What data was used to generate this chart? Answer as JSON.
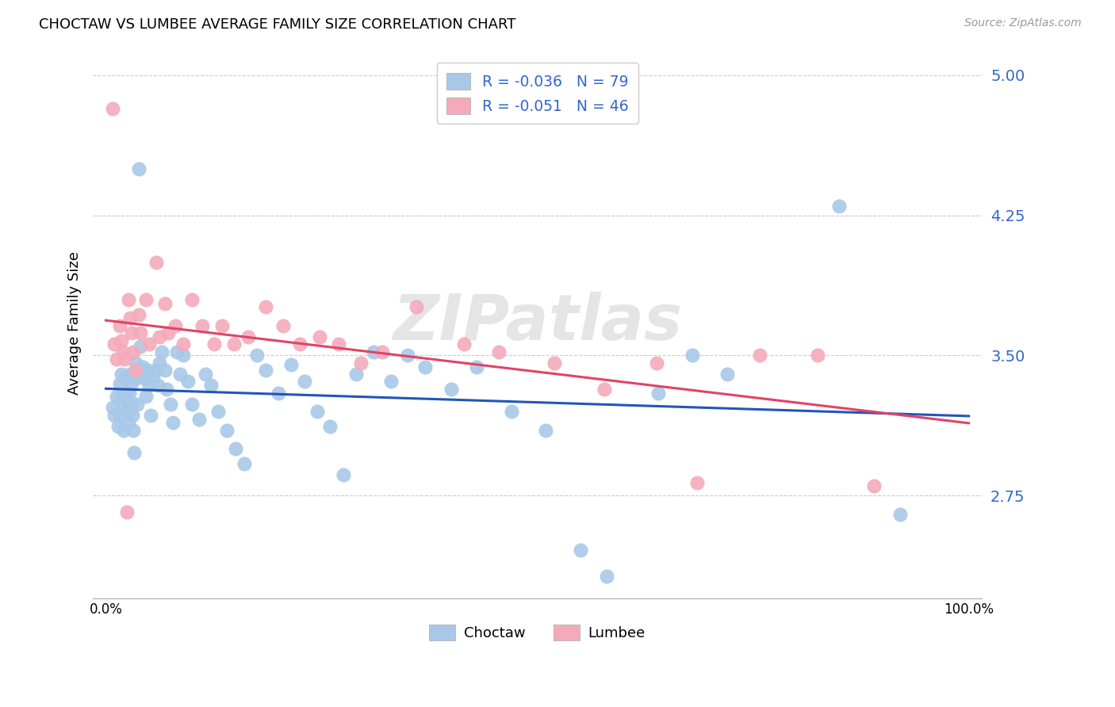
{
  "title": "CHOCTAW VS LUMBEE AVERAGE FAMILY SIZE CORRELATION CHART",
  "source": "Source: ZipAtlas.com",
  "ylabel": "Average Family Size",
  "ylim": [
    2.2,
    5.15
  ],
  "xlim": [
    -0.015,
    1.015
  ],
  "yticks": [
    2.75,
    3.5,
    4.25,
    5.0
  ],
  "choctaw_color": "#a8c8e8",
  "lumbee_color": "#f4aabb",
  "choctaw_line_color": "#2255bb",
  "lumbee_line_color": "#e0446688",
  "choctaw_line_color_solid": "#2255bb",
  "lumbee_line_color_solid": "#e04466",
  "tick_color": "#3366cc",
  "choctaw_R": -0.036,
  "choctaw_N": 79,
  "lumbee_R": -0.051,
  "lumbee_N": 46,
  "background_color": "#ffffff",
  "grid_color": "#cccccc",
  "watermark": "ZIPatlas",
  "choctaw_x": [
    0.008,
    0.01,
    0.012,
    0.014,
    0.016,
    0.016,
    0.018,
    0.019,
    0.02,
    0.021,
    0.022,
    0.023,
    0.024,
    0.025,
    0.026,
    0.027,
    0.028,
    0.029,
    0.03,
    0.031,
    0.032,
    0.033,
    0.034,
    0.035,
    0.036,
    0.038,
    0.04,
    0.041,
    0.043,
    0.045,
    0.046,
    0.048,
    0.05,
    0.052,
    0.055,
    0.058,
    0.06,
    0.062,
    0.065,
    0.068,
    0.07,
    0.075,
    0.078,
    0.082,
    0.086,
    0.09,
    0.095,
    0.1,
    0.108,
    0.115,
    0.122,
    0.13,
    0.14,
    0.15,
    0.16,
    0.175,
    0.185,
    0.2,
    0.215,
    0.23,
    0.245,
    0.26,
    0.275,
    0.29,
    0.31,
    0.33,
    0.35,
    0.37,
    0.4,
    0.43,
    0.47,
    0.51,
    0.55,
    0.58,
    0.64,
    0.68,
    0.72,
    0.85,
    0.92
  ],
  "choctaw_y": [
    3.22,
    3.18,
    3.28,
    3.12,
    3.35,
    3.18,
    3.4,
    3.28,
    3.22,
    3.1,
    3.38,
    3.3,
    3.26,
    3.2,
    3.14,
    3.3,
    3.4,
    3.34,
    3.24,
    3.18,
    3.1,
    2.98,
    3.46,
    3.38,
    3.24,
    4.5,
    3.55,
    3.42,
    3.44,
    3.38,
    3.28,
    3.42,
    3.34,
    3.18,
    3.38,
    3.42,
    3.34,
    3.46,
    3.52,
    3.42,
    3.32,
    3.24,
    3.14,
    3.52,
    3.4,
    3.5,
    3.36,
    3.24,
    3.16,
    3.4,
    3.34,
    3.2,
    3.1,
    3.0,
    2.92,
    3.5,
    3.42,
    3.3,
    3.45,
    3.36,
    3.2,
    3.12,
    2.86,
    3.4,
    3.52,
    3.36,
    3.5,
    3.44,
    3.32,
    3.44,
    3.2,
    3.1,
    2.46,
    2.32,
    3.3,
    3.5,
    3.4,
    4.3,
    2.65
  ],
  "lumbee_x": [
    0.008,
    0.01,
    0.012,
    0.016,
    0.018,
    0.02,
    0.022,
    0.024,
    0.026,
    0.028,
    0.03,
    0.032,
    0.034,
    0.038,
    0.04,
    0.046,
    0.05,
    0.058,
    0.062,
    0.068,
    0.072,
    0.08,
    0.09,
    0.1,
    0.112,
    0.125,
    0.135,
    0.148,
    0.165,
    0.185,
    0.205,
    0.225,
    0.248,
    0.27,
    0.295,
    0.32,
    0.36,
    0.415,
    0.455,
    0.52,
    0.578,
    0.638,
    0.685,
    0.758,
    0.825,
    0.89
  ],
  "lumbee_y": [
    4.82,
    3.56,
    3.48,
    3.66,
    3.58,
    3.52,
    3.48,
    2.66,
    3.8,
    3.7,
    3.62,
    3.52,
    3.42,
    3.72,
    3.62,
    3.8,
    3.56,
    4.0,
    3.6,
    3.78,
    3.62,
    3.66,
    3.56,
    3.8,
    3.66,
    3.56,
    3.66,
    3.56,
    3.6,
    3.76,
    3.66,
    3.56,
    3.6,
    3.56,
    3.46,
    3.52,
    3.76,
    3.56,
    3.52,
    3.46,
    3.32,
    3.46,
    2.82,
    3.5,
    3.5,
    2.8
  ]
}
